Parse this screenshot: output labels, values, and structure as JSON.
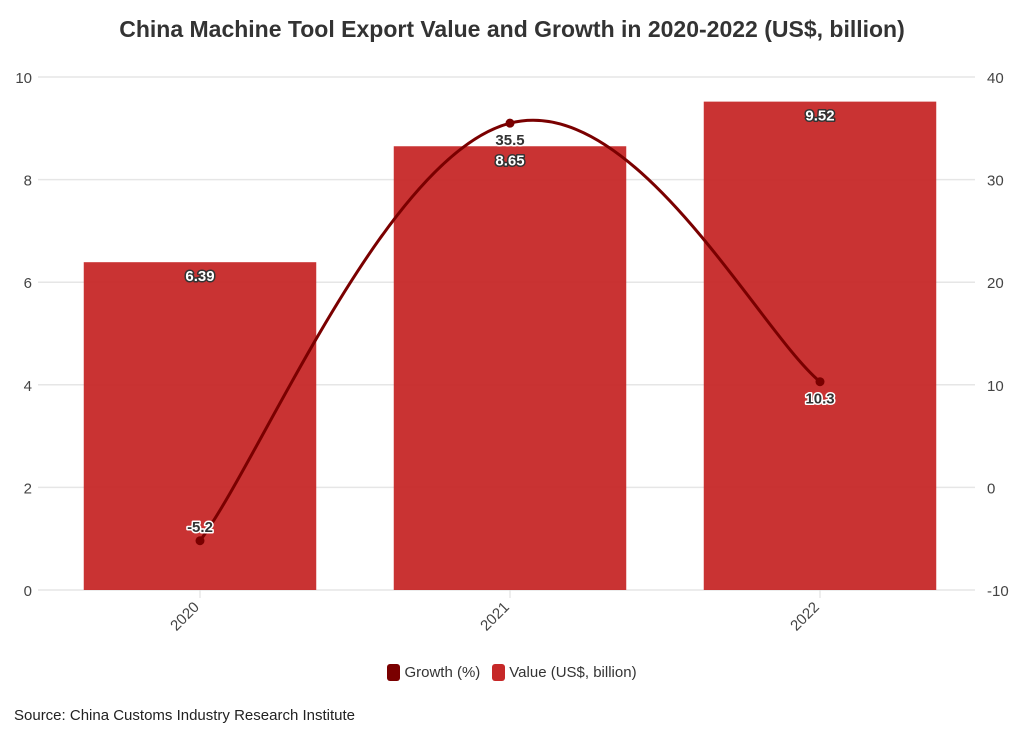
{
  "chart_data": {
    "type": "bar+line",
    "title": "China Machine Tool Export Value and Growth in 2020-2022 (US$, billion)",
    "categories": [
      "2020",
      "2021",
      "2022"
    ],
    "series": [
      {
        "name": "Value (US$, billion)",
        "type": "bar",
        "axis": "left",
        "values": [
          6.39,
          8.65,
          9.52
        ],
        "labels": [
          "6.39",
          "8.65",
          "9.52"
        ],
        "color": "#c62828"
      },
      {
        "name": "Growth (%)",
        "type": "line",
        "axis": "right",
        "values": [
          -5.2,
          35.5,
          10.3
        ],
        "labels": [
          "-5.2",
          "35.5",
          "10.3"
        ],
        "color": "#7a0000"
      }
    ],
    "y_left": {
      "range": [
        0,
        10
      ],
      "ticks": [
        "0",
        "2",
        "4",
        "6",
        "8",
        "10"
      ]
    },
    "y_right": {
      "range": [
        -10,
        40
      ],
      "ticks": [
        "-10",
        "0",
        "10",
        "20",
        "30",
        "40"
      ]
    },
    "grid": true,
    "legend_position": "bottom"
  },
  "source": "Source: China Customs Industry Research Institute"
}
